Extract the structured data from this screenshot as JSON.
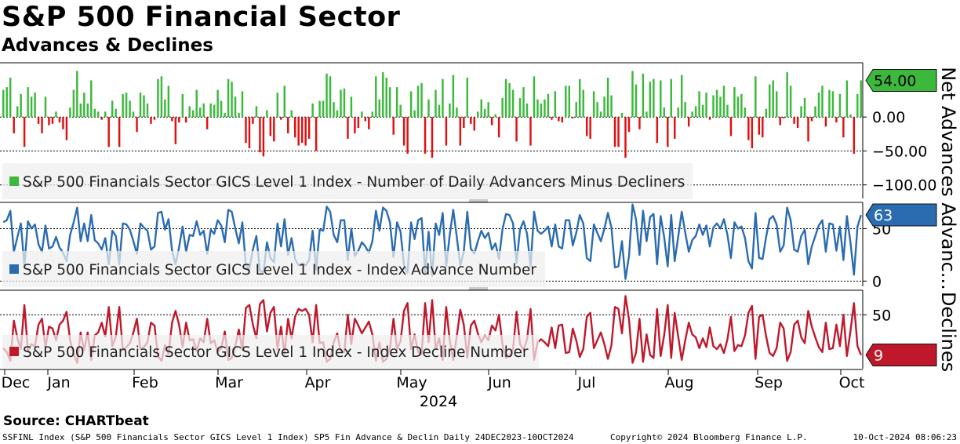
{
  "title": "S&P 500 Financial Sector",
  "subtitle": "Advances & Declines",
  "source": "Source: CHARTbeat",
  "footer": {
    "left": "SSFINL Index (S&P 500 Financials Sector GICS Level 1 Index) SP5 Fin Advance & Declin  Daily 24DEC2023-10OCT2024",
    "middle": "Copyright© 2024 Bloomberg Finance L.P.",
    "right": "10-Oct-2024 08:06:23"
  },
  "colors": {
    "green": "#3cb93c",
    "red": "#e01010",
    "blue": "#2b6cb0",
    "crimson": "#c0182b",
    "legend_bg": "#eeeeee",
    "grid": "#000000"
  },
  "chart_data": {
    "type": "line",
    "x_axis": {
      "months": [
        "Dec",
        "Jan",
        "Feb",
        "Mar",
        "Apr",
        "May",
        "Jun",
        "Jul",
        "Aug",
        "Sep",
        "Oct"
      ],
      "year": "2024"
    },
    "panels": [
      {
        "name": "Net Advances",
        "type": "bar",
        "legend": "S&P 500 Financials Sector GICS Level 1 Index - Number of Daily Advancers Minus Decliners",
        "ylim": [
          -120,
          80
        ],
        "ticks": [
          0,
          -50,
          -100
        ],
        "tick_labels": [
          "0.00",
          "−50.00",
          "−100.00"
        ],
        "last_value_label": "54.00",
        "last_value": 54,
        "values": [
          40,
          44,
          58,
          -24,
          16,
          34,
          -44,
          44,
          30,
          36,
          -10,
          -24,
          30,
          -12,
          -10,
          8,
          -8,
          -18,
          -34,
          14,
          40,
          68,
          20,
          36,
          20,
          54,
          12,
          8,
          -4,
          8,
          -44,
          24,
          12,
          -44,
          34,
          36,
          24,
          8,
          -22,
          36,
          32,
          20,
          -10,
          -4,
          56,
          60,
          26,
          46,
          -6,
          -40,
          -8,
          34,
          -8,
          16,
          10,
          40,
          14,
          20,
          -18,
          20,
          18,
          40,
          24,
          6,
          56,
          52,
          30,
          6,
          38,
          -38,
          -46,
          -10,
          16,
          -52,
          -58,
          10,
          -28,
          -36,
          36,
          -4,
          46,
          -24,
          10,
          -30,
          -42,
          -38,
          -42,
          -32,
          20,
          -50,
          24,
          24,
          64,
          60,
          22,
          10,
          40,
          42,
          -32,
          30,
          -24,
          -16,
          8,
          -6,
          -18,
          8,
          60,
          26,
          66,
          58,
          44,
          -26,
          44,
          18,
          -42,
          -54,
          38,
          10,
          46,
          50,
          -54,
          26,
          -60,
          40,
          18,
          56,
          -42,
          20,
          62,
          14,
          -42,
          -16,
          58,
          -10,
          -20,
          8,
          26,
          12,
          22,
          -12,
          4,
          -30,
          28,
          56,
          50,
          40,
          -36,
          28,
          44,
          20,
          -42,
          60,
          26,
          20,
          26,
          34,
          -4,
          38,
          -6,
          -8,
          46,
          46,
          -2,
          22,
          56,
          40,
          -28,
          -32,
          38,
          22,
          8,
          30,
          58,
          32,
          -44,
          -44,
          6,
          -60,
          -22,
          68,
          48,
          -18,
          64,
          8,
          52,
          56,
          -38,
          54,
          14,
          -44,
          56,
          -32,
          14,
          62,
          22,
          -14,
          8,
          16,
          38,
          18,
          36,
          -4,
          32,
          40,
          30,
          46,
          18,
          -28,
          44,
          30,
          34,
          14,
          -34,
          -46,
          60,
          -26,
          -30,
          12,
          48,
          54,
          38,
          -12,
          -2,
          66,
          46,
          -10,
          -16,
          16,
          28,
          -36,
          -6,
          16,
          36,
          46,
          -14,
          40,
          38,
          -8,
          34,
          -30,
          54,
          4,
          -54,
          34,
          54
        ]
      },
      {
        "name": "Advanc...",
        "type": "line",
        "legend": "S&P 500 Financials Sector GICS Level 1 Index - Index Advance Number",
        "ylim": [
          -5,
          75
        ],
        "ticks": [
          0,
          50
        ],
        "tick_labels": [
          "0",
          "50"
        ],
        "last_value_label": "63",
        "last_value": 63,
        "values": [
          56,
          58,
          67,
          28,
          42,
          55,
          14,
          57,
          50,
          54,
          35,
          28,
          53,
          31,
          33,
          42,
          32,
          27,
          19,
          44,
          56,
          70,
          38,
          55,
          38,
          63,
          39,
          36,
          30,
          41,
          16,
          48,
          43,
          16,
          55,
          54,
          49,
          38,
          26,
          55,
          51,
          48,
          30,
          33,
          65,
          66,
          49,
          59,
          29,
          16,
          32,
          52,
          28,
          44,
          43,
          57,
          44,
          48,
          26,
          49,
          45,
          58,
          53,
          37,
          68,
          66,
          50,
          36,
          56,
          15,
          12,
          30,
          43,
          10,
          8,
          37,
          22,
          18,
          55,
          33,
          59,
          25,
          41,
          21,
          15,
          17,
          15,
          20,
          48,
          11,
          49,
          48,
          71,
          66,
          44,
          37,
          58,
          58,
          20,
          50,
          24,
          29,
          37,
          33,
          27,
          38,
          67,
          48,
          70,
          67,
          56,
          23,
          56,
          47,
          15,
          8,
          56,
          40,
          58,
          60,
          8,
          47,
          5,
          55,
          44,
          65,
          14,
          44,
          68,
          42,
          15,
          28,
          66,
          31,
          26,
          38,
          48,
          41,
          46,
          30,
          36,
          21,
          49,
          64,
          63,
          55,
          17,
          49,
          57,
          45,
          14,
          66,
          48,
          45,
          48,
          52,
          33,
          54,
          33,
          31,
          58,
          58,
          34,
          46,
          63,
          55,
          22,
          19,
          54,
          46,
          38,
          50,
          65,
          51,
          13,
          14,
          38,
          2,
          24,
          73,
          59,
          25,
          67,
          38,
          61,
          64,
          16,
          62,
          42,
          14,
          63,
          19,
          42,
          66,
          46,
          28,
          39,
          43,
          54,
          44,
          53,
          33,
          51,
          55,
          50,
          59,
          44,
          22,
          56,
          50,
          52,
          41,
          19,
          12,
          65,
          22,
          21,
          42,
          59,
          62,
          54,
          28,
          34,
          70,
          58,
          30,
          28,
          43,
          49,
          16,
          33,
          43,
          53,
          58,
          28,
          55,
          54,
          29,
          52,
          20,
          62,
          37,
          6,
          52,
          63
        ]
      },
      {
        "name": "Declines",
        "type": "line",
        "legend": "S&P 500 Financials Sector GICS Level 1 Index - Index Decline Number",
        "ylim": [
          -5,
          75
        ],
        "ticks": [
          50
        ],
        "tick_labels": [
          "50"
        ],
        "last_value_label": "9",
        "last_value": 9,
        "values": [
          16,
          12,
          3,
          44,
          26,
          15,
          60,
          13,
          20,
          18,
          40,
          46,
          17,
          38,
          36,
          24,
          40,
          44,
          53,
          24,
          10,
          1,
          32,
          14,
          32,
          4,
          29,
          32,
          42,
          28,
          58,
          18,
          28,
          58,
          14,
          17,
          21,
          32,
          46,
          15,
          17,
          22,
          42,
          39,
          8,
          3,
          19,
          10,
          42,
          54,
          40,
          17,
          42,
          24,
          25,
          13,
          26,
          22,
          46,
          21,
          24,
          12,
          16,
          33,
          4,
          6,
          18,
          35,
          14,
          57,
          60,
          40,
          26,
          61,
          65,
          33,
          52,
          58,
          15,
          38,
          10,
          46,
          26,
          48,
          56,
          54,
          56,
          50,
          22,
          60,
          21,
          22,
          2,
          5,
          22,
          31,
          12,
          12,
          50,
          20,
          46,
          39,
          31,
          37,
          43,
          30,
          3,
          22,
          2,
          5,
          16,
          46,
          15,
          23,
          54,
          62,
          15,
          30,
          12,
          10,
          62,
          22,
          65,
          15,
          26,
          4,
          58,
          24,
          4,
          28,
          55,
          40,
          6,
          39,
          44,
          31,
          22,
          29,
          24,
          39,
          34,
          50,
          20,
          6,
          8,
          15,
          53,
          20,
          14,
          25,
          56,
          4,
          22,
          25,
          22,
          18,
          37,
          16,
          39,
          40,
          11,
          12,
          36,
          24,
          7,
          15,
          48,
          52,
          16,
          24,
          32,
          20,
          5,
          19,
          58,
          56,
          31,
          69,
          45,
          1,
          11,
          46,
          2,
          30,
          9,
          6,
          56,
          8,
          29,
          60,
          6,
          52,
          28,
          4,
          24,
          42,
          30,
          27,
          16,
          26,
          17,
          37,
          18,
          15,
          20,
          11,
          25,
          48,
          13,
          19,
          18,
          29,
          52,
          59,
          5,
          48,
          50,
          28,
          11,
          8,
          16,
          42,
          36,
          3,
          12,
          40,
          44,
          27,
          21,
          54,
          38,
          27,
          17,
          12,
          42,
          15,
          16,
          40,
          18,
          50,
          8,
          33,
          62,
          18,
          9
        ]
      }
    ]
  }
}
